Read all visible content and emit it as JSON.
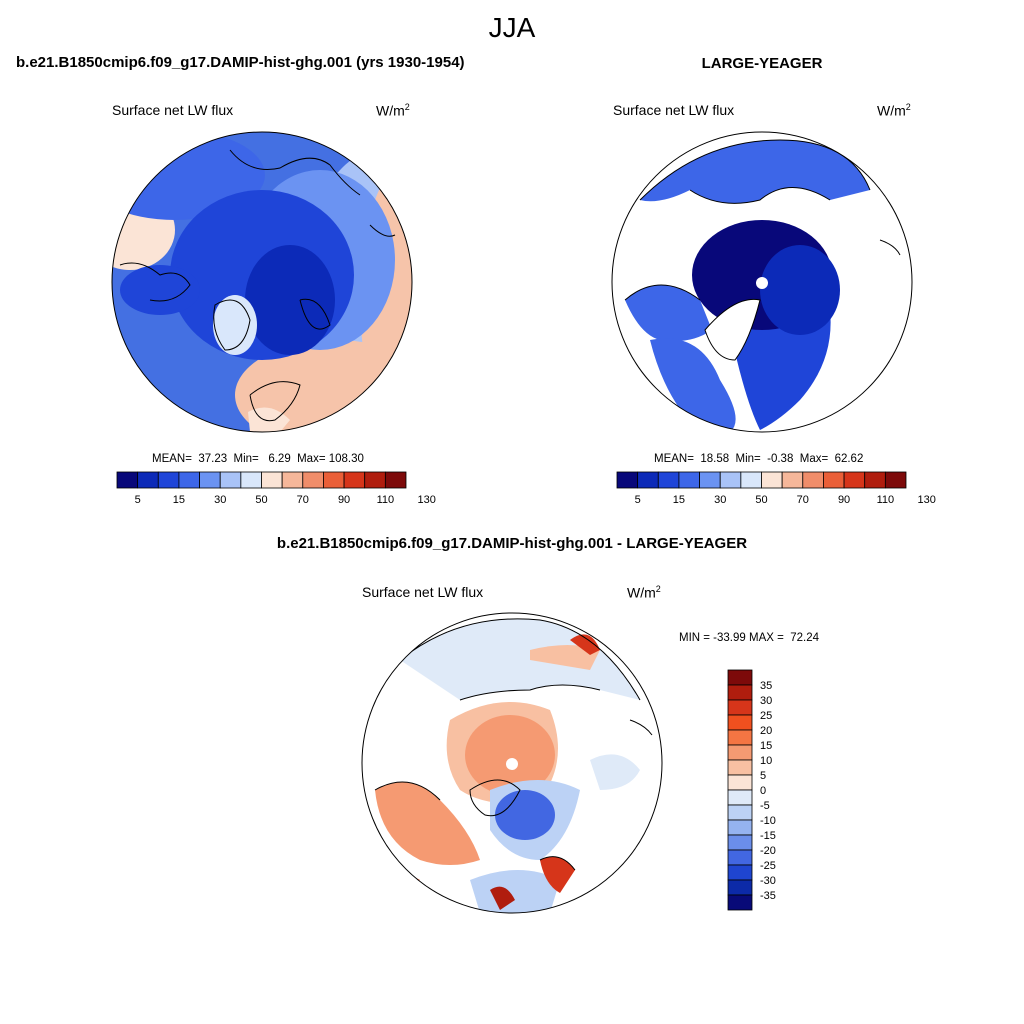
{
  "season_title": "JJA",
  "panels": [
    {
      "id": "model",
      "header": "b.e21.B1850cmip6.f09_g17.DAMIP-hist-ghg.001 (yrs 1930-1954)",
      "variable": "Surface net LW flux",
      "units": "W/m",
      "units_exp": "2",
      "stats": "MEAN=  37.23  Min=   6.29  Max= 108.30",
      "colorbar_ticks": [
        "5",
        "15",
        "30",
        "50",
        "70",
        "90",
        "110",
        "130"
      ]
    },
    {
      "id": "obs",
      "header": "LARGE-YEAGER",
      "variable": "Surface net LW flux",
      "units": "W/m",
      "units_exp": "2",
      "stats": "MEAN=  18.58  Min=  -0.38  Max=  62.62",
      "colorbar_ticks": [
        "5",
        "15",
        "30",
        "50",
        "70",
        "90",
        "110",
        "130"
      ]
    }
  ],
  "difference": {
    "header": "b.e21.B1850cmip6.f09_g17.DAMIP-hist-ghg.001 - LARGE-YEAGER",
    "variable": "Surface net LW flux",
    "units": "W/m",
    "units_exp": "2",
    "minmax": "MIN = -33.99 MAX =  72.24",
    "colorbar_labels": [
      "35",
      "30",
      "25",
      "20",
      "15",
      "10",
      "5",
      "0",
      "-5",
      "-10",
      "-15",
      "-20",
      "-25",
      "-30",
      "-35"
    ]
  },
  "colors": {
    "abs_scale": [
      "#08087a",
      "#0c2ab8",
      "#1f45d8",
      "#3d66e8",
      "#6b93f2",
      "#a9c3f7",
      "#d9e7fb",
      "#fbe4d6",
      "#f6b79a",
      "#f08d6a",
      "#ea5f38",
      "#d6351a",
      "#b01d0e",
      "#7d0a0a"
    ],
    "diff_scale": [
      "#7d0a0a",
      "#b01d0e",
      "#d6351a",
      "#f0501f",
      "#f57543",
      "#f59a72",
      "#f8c0a2",
      "#fbe4d6",
      "#dfeaf8",
      "#bcd2f5",
      "#95b3f0",
      "#6b8eea",
      "#4267e2",
      "#1f45d0",
      "#0c2aa8",
      "#080a78"
    ]
  }
}
